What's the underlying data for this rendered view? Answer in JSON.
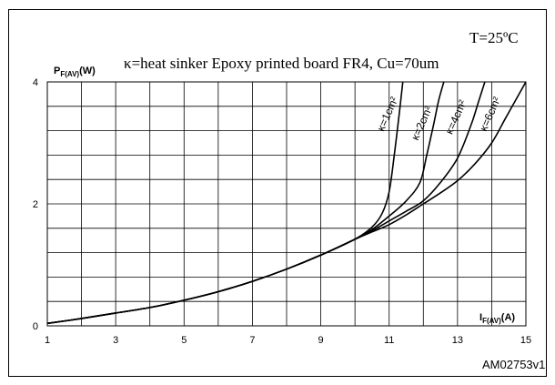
{
  "chart_data": {
    "type": "line",
    "title": "κ=heat sinker Epoxy printed board FR4, Cu=70um",
    "condition": "T=25ºC",
    "ylabel": {
      "main": "P",
      "sub": "F(AV)",
      "unit": "(W)"
    },
    "xlabel": {
      "main": "I",
      "sub": "F(AV)",
      "unit": "(A)"
    },
    "reference": "AM02753v1",
    "xlim": [
      1,
      15
    ],
    "ylim": [
      0,
      4
    ],
    "x_ticks": [
      "1",
      "3",
      "5",
      "7",
      "9",
      "11",
      "13",
      "15"
    ],
    "y_ticks": [
      "0",
      "2",
      "4"
    ],
    "grid": true,
    "series": [
      {
        "name": "κ=1cm²",
        "points": [
          [
            1,
            0.04
          ],
          [
            2,
            0.12
          ],
          [
            3,
            0.21
          ],
          [
            4,
            0.3
          ],
          [
            5,
            0.42
          ],
          [
            6,
            0.56
          ],
          [
            7,
            0.73
          ],
          [
            8,
            0.93
          ],
          [
            9,
            1.16
          ],
          [
            10,
            1.42
          ],
          [
            10.5,
            1.62
          ],
          [
            10.8,
            1.85
          ],
          [
            11,
            2.2
          ],
          [
            11.15,
            2.8
          ],
          [
            11.3,
            3.5
          ],
          [
            11.4,
            4.0
          ]
        ]
      },
      {
        "name": "κ=2cm²",
        "points": [
          [
            1,
            0.04
          ],
          [
            2,
            0.12
          ],
          [
            3,
            0.21
          ],
          [
            4,
            0.3
          ],
          [
            5,
            0.42
          ],
          [
            6,
            0.56
          ],
          [
            7,
            0.73
          ],
          [
            8,
            0.93
          ],
          [
            9,
            1.16
          ],
          [
            10,
            1.42
          ],
          [
            10.5,
            1.58
          ],
          [
            11,
            1.8
          ],
          [
            11.5,
            2.05
          ],
          [
            11.9,
            2.35
          ],
          [
            12.1,
            2.8
          ],
          [
            12.3,
            3.3
          ],
          [
            12.45,
            3.7
          ],
          [
            12.6,
            4.0
          ]
        ]
      },
      {
        "name": "κ=4cm²",
        "points": [
          [
            1,
            0.04
          ],
          [
            2,
            0.12
          ],
          [
            3,
            0.21
          ],
          [
            4,
            0.3
          ],
          [
            5,
            0.42
          ],
          [
            6,
            0.56
          ],
          [
            7,
            0.73
          ],
          [
            8,
            0.93
          ],
          [
            9,
            1.16
          ],
          [
            10,
            1.42
          ],
          [
            10.5,
            1.56
          ],
          [
            11,
            1.72
          ],
          [
            11.5,
            1.88
          ],
          [
            12,
            2.05
          ],
          [
            12.5,
            2.35
          ],
          [
            13,
            2.75
          ],
          [
            13.4,
            3.3
          ],
          [
            13.6,
            3.65
          ],
          [
            13.8,
            4.0
          ]
        ]
      },
      {
        "name": "κ=6cm²",
        "points": [
          [
            1,
            0.04
          ],
          [
            2,
            0.12
          ],
          [
            3,
            0.21
          ],
          [
            4,
            0.3
          ],
          [
            5,
            0.42
          ],
          [
            6,
            0.56
          ],
          [
            7,
            0.73
          ],
          [
            8,
            0.93
          ],
          [
            9,
            1.16
          ],
          [
            10,
            1.42
          ],
          [
            10.5,
            1.54
          ],
          [
            11,
            1.66
          ],
          [
            11.5,
            1.82
          ],
          [
            12,
            2.0
          ],
          [
            12.5,
            2.18
          ],
          [
            13,
            2.38
          ],
          [
            13.5,
            2.65
          ],
          [
            14,
            3.0
          ],
          [
            14.4,
            3.4
          ],
          [
            14.8,
            3.8
          ],
          [
            15,
            4.0
          ]
        ]
      }
    ]
  }
}
